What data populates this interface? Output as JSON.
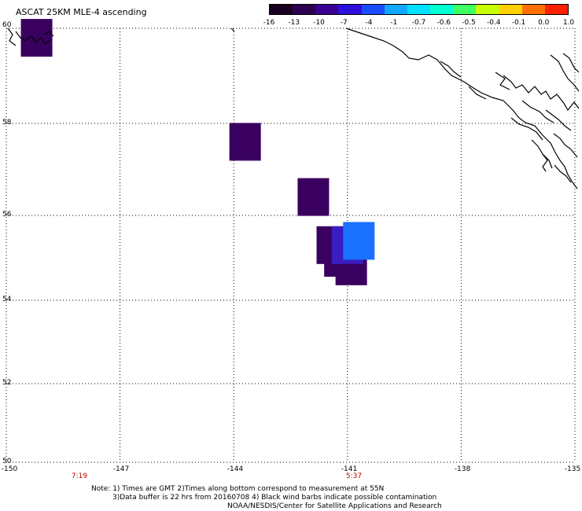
{
  "title": "ASCAT 25KM MLE-4 ascending",
  "colorbar": {
    "labels": [
      "-16",
      "-13",
      "-10",
      "-7",
      "-4",
      "-1",
      "-0.7",
      "-0.6",
      "-0.5",
      "-0.4",
      "-0.1",
      "0.0",
      "1.0"
    ],
    "colors": [
      "#1a0020",
      "#2e0052",
      "#3a0090",
      "#2a10d8",
      "#1a4cff",
      "#10a8ff",
      "#00e0ff",
      "#00ffd0",
      "#40ff60",
      "#c8ff00",
      "#ffd000",
      "#ff7000",
      "#ff2000"
    ]
  },
  "axes": {
    "lat_labels": [
      "60",
      "58",
      "56",
      "54",
      "52",
      "50"
    ],
    "lon_labels": [
      "-150",
      "-147",
      "-144",
      "-141",
      "-138",
      "-135"
    ]
  },
  "time_labels": [
    "7:19",
    "5:37"
  ],
  "notes": {
    "line1": "Note: 1) Times are GMT 2)Times along bottom correspond to measurement at 55N",
    "line2": "3)Data buffer is 22 hrs from 20160708 4) Black wind barbs indicate possible contamination",
    "line3": "NOAA/NESDIS/Center for Satellite Applications and Research"
  },
  "map_data": {
    "lon_range": [
      -150,
      -135
    ],
    "lat_range": [
      50,
      60
    ],
    "cells": [
      {
        "lon": -149.2,
        "lat": 59.8,
        "color": "#3a0060"
      },
      {
        "lon": -143.7,
        "lat": 57.6,
        "color": "#3a0060"
      },
      {
        "lon": -141.9,
        "lat": 56.4,
        "color": "#3a0060"
      },
      {
        "lon": -141.4,
        "lat": 55.3,
        "color": "#3a0060"
      },
      {
        "lon": -141.2,
        "lat": 55.0,
        "color": "#3a0060"
      },
      {
        "lon": -140.9,
        "lat": 54.8,
        "color": "#3a0060"
      },
      {
        "lon": -141.0,
        "lat": 55.3,
        "color": "#3a1cc0"
      },
      {
        "lon": -140.7,
        "lat": 55.4,
        "color": "#1a70ff"
      }
    ]
  }
}
